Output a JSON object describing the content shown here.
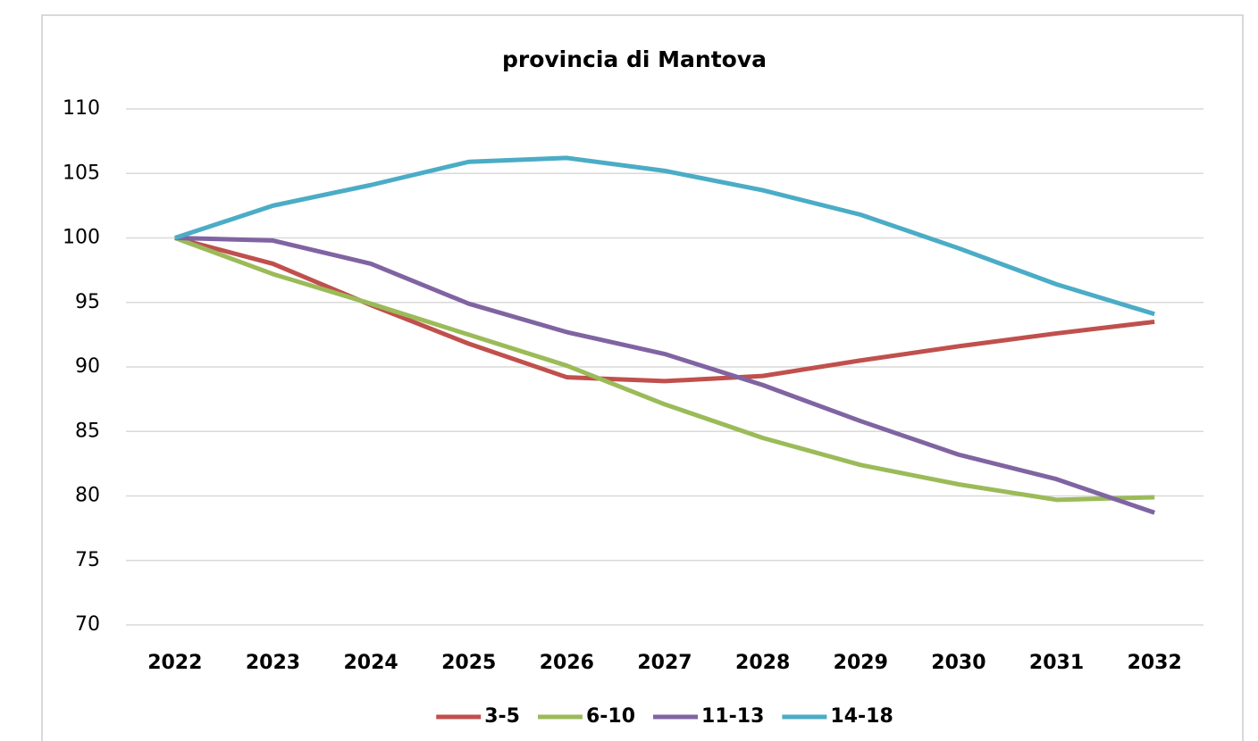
{
  "chart_data": {
    "type": "line",
    "title": "provincia di Mantova",
    "categories": [
      "2022",
      "2023",
      "2024",
      "2025",
      "2026",
      "2027",
      "2028",
      "2029",
      "2030",
      "2031",
      "2032"
    ],
    "series": [
      {
        "name": "3-5",
        "color": "#c0504d",
        "values": [
          100,
          98,
          94.8,
          91.8,
          89.2,
          88.9,
          89.3,
          90.5,
          91.6,
          92.6,
          93.5
        ]
      },
      {
        "name": "6-10",
        "color": "#9bbb59",
        "values": [
          100,
          97.2,
          94.9,
          92.5,
          90.1,
          87.1,
          84.5,
          82.4,
          80.9,
          79.7,
          79.9
        ]
      },
      {
        "name": "11-13",
        "color": "#8064a2",
        "values": [
          100,
          99.8,
          98,
          94.9,
          92.7,
          91,
          88.6,
          85.8,
          83.2,
          81.3,
          78.7
        ]
      },
      {
        "name": "14-18",
        "color": "#4bacc6",
        "values": [
          100,
          102.5,
          104.1,
          105.9,
          106.2,
          105.2,
          103.7,
          101.8,
          99.2,
          96.4,
          94.1
        ]
      }
    ],
    "ylim": [
      70,
      110
    ],
    "yticks": [
      70,
      75,
      80,
      85,
      90,
      95,
      100,
      105,
      110
    ],
    "grid": true,
    "legend": "bottom"
  }
}
